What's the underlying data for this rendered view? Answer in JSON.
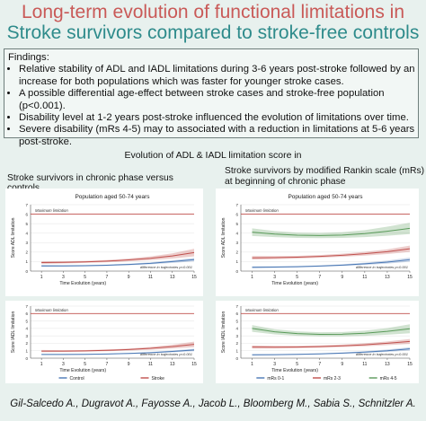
{
  "title": {
    "line1": "Long-term evolution of functional limitations in",
    "line2": "Stroke survivors compared to stroke-free controls"
  },
  "findings": {
    "heading": "Findings:",
    "items": [
      "Relative stability of ADL and IADL limitations during 3-6 years post-stroke followed by an increase for both populations which was faster for younger stroke cases.",
      "A possible differential age-effect between stroke cases and stroke-free population (p<0.001).",
      "Disability level at 1-2 years post-stroke influenced the evolution of limitations over time.",
      "Severe disability (mRs 4-5) may to associated with a reduction in limitations at 5-6 years post-stroke."
    ]
  },
  "section_title": "Evolution of ADL & IADL limitation score in",
  "left_heading": "Stroke survivors in chronic phase versus controls.",
  "right_heading": "Stroke survivors by modified Rankin scale (mRs) at beginning of chronic phase",
  "authors": "Gil-Salcedo A., Dugravot A., Fayosse A., Jacob L., Bloomberg M., Sabia S., Schnitzler A.",
  "colors": {
    "control": "#4a78b5",
    "stroke": "#c0504d",
    "mrs01": "#4a78b5",
    "mrs23": "#c0504d",
    "mrs45": "#5a9a5a",
    "maxline": "#c0504d"
  },
  "chart_data": [
    {
      "type": "line",
      "panel": "controls-ADL",
      "title": "Population aged 50-74 years",
      "xlabel": "Time Evolution (years)",
      "ylabel": "Score ADL limitation",
      "xlim": [
        0,
        15
      ],
      "ylim": [
        0,
        7
      ],
      "xticks": [
        1,
        3,
        5,
        7,
        9,
        11,
        13,
        15
      ],
      "yticks": [
        0,
        1,
        2,
        3,
        4,
        5,
        6,
        7
      ],
      "reference_line": {
        "label": "Maximum limitation",
        "y": 6
      },
      "annotation": "difference in trajectories p<0.001",
      "x": [
        1,
        3,
        5,
        7,
        9,
        11,
        13,
        15
      ],
      "series": [
        {
          "name": "Control",
          "color_key": "control",
          "values": [
            0.55,
            0.55,
            0.57,
            0.62,
            0.7,
            0.82,
            1.0,
            1.2
          ],
          "lower": [
            0.45,
            0.47,
            0.5,
            0.55,
            0.62,
            0.72,
            0.86,
            1.02
          ],
          "upper": [
            0.65,
            0.63,
            0.64,
            0.69,
            0.78,
            0.92,
            1.14,
            1.38
          ]
        },
        {
          "name": "Stroke",
          "color_key": "stroke",
          "values": [
            0.9,
            0.92,
            0.97,
            1.05,
            1.18,
            1.35,
            1.6,
            1.95
          ],
          "lower": [
            0.75,
            0.8,
            0.86,
            0.93,
            1.03,
            1.15,
            1.33,
            1.55
          ],
          "upper": [
            1.05,
            1.04,
            1.08,
            1.17,
            1.33,
            1.55,
            1.87,
            2.35
          ]
        }
      ]
    },
    {
      "type": "line",
      "panel": "mrs-ADL",
      "title": "Population aged 50-74 years",
      "xlabel": "Time Evolution (years)",
      "ylabel": "Score ADL limitation",
      "xlim": [
        0,
        15
      ],
      "ylim": [
        0,
        7
      ],
      "xticks": [
        1,
        3,
        5,
        7,
        9,
        11,
        13,
        15
      ],
      "yticks": [
        0,
        1,
        2,
        3,
        4,
        5,
        6,
        7
      ],
      "reference_line": {
        "label": "Maximum limitation",
        "y": 6
      },
      "annotation": "difference in trajectories p<0.001",
      "x": [
        1,
        3,
        5,
        7,
        9,
        11,
        13,
        15
      ],
      "series": [
        {
          "name": "mRs 0-1",
          "color_key": "mrs01",
          "values": [
            0.4,
            0.42,
            0.46,
            0.53,
            0.63,
            0.77,
            0.95,
            1.2
          ],
          "lower": [
            0.3,
            0.34,
            0.39,
            0.46,
            0.54,
            0.65,
            0.79,
            0.98
          ],
          "upper": [
            0.5,
            0.5,
            0.53,
            0.6,
            0.72,
            0.89,
            1.11,
            1.42
          ]
        },
        {
          "name": "mRs 2-3",
          "color_key": "mrs23",
          "values": [
            1.4,
            1.42,
            1.47,
            1.55,
            1.67,
            1.83,
            2.05,
            2.35
          ],
          "lower": [
            1.2,
            1.26,
            1.33,
            1.41,
            1.51,
            1.63,
            1.8,
            2.02
          ],
          "upper": [
            1.6,
            1.58,
            1.61,
            1.69,
            1.83,
            2.03,
            2.3,
            2.68
          ]
        },
        {
          "name": "mRs 4-5",
          "color_key": "mrs45",
          "values": [
            4.1,
            3.9,
            3.78,
            3.75,
            3.8,
            3.95,
            4.2,
            4.5
          ],
          "lower": [
            3.7,
            3.58,
            3.5,
            3.48,
            3.5,
            3.58,
            3.72,
            3.9
          ],
          "upper": [
            4.5,
            4.22,
            4.06,
            4.02,
            4.1,
            4.32,
            4.68,
            5.1
          ]
        }
      ]
    },
    {
      "type": "line",
      "panel": "controls-IADL",
      "title": "",
      "xlabel": "Time Evolution (years)",
      "ylabel": "Score IADL limitation",
      "xlim": [
        0,
        15
      ],
      "ylim": [
        0,
        7
      ],
      "xticks": [
        1,
        3,
        5,
        7,
        9,
        11,
        13,
        15
      ],
      "yticks": [
        0,
        1,
        2,
        3,
        4,
        5,
        6,
        7
      ],
      "reference_line": {
        "label": "Maximum limitation",
        "y": 6
      },
      "annotation": "difference in trajectories p<0.001",
      "x": [
        1,
        3,
        5,
        7,
        9,
        11,
        13,
        15
      ],
      "series": [
        {
          "name": "Control",
          "color_key": "control",
          "values": [
            0.5,
            0.5,
            0.52,
            0.56,
            0.63,
            0.74,
            0.9,
            1.1
          ],
          "lower": [
            0.42,
            0.43,
            0.46,
            0.5,
            0.56,
            0.65,
            0.78,
            0.94
          ],
          "upper": [
            0.58,
            0.57,
            0.58,
            0.62,
            0.7,
            0.83,
            1.02,
            1.26
          ]
        },
        {
          "name": "Stroke",
          "color_key": "stroke",
          "values": [
            0.95,
            0.95,
            0.98,
            1.05,
            1.16,
            1.32,
            1.55,
            1.85
          ],
          "lower": [
            0.8,
            0.83,
            0.87,
            0.93,
            1.02,
            1.13,
            1.29,
            1.48
          ],
          "upper": [
            1.1,
            1.07,
            1.09,
            1.17,
            1.3,
            1.51,
            1.81,
            2.22
          ]
        }
      ]
    },
    {
      "type": "line",
      "panel": "mrs-IADL",
      "title": "",
      "xlabel": "Time Evolution (years)",
      "ylabel": "Score IADL limitation",
      "xlim": [
        0,
        15
      ],
      "ylim": [
        0,
        7
      ],
      "xticks": [
        1,
        3,
        5,
        7,
        9,
        11,
        13,
        15
      ],
      "yticks": [
        0,
        1,
        2,
        3,
        4,
        5,
        6,
        7
      ],
      "reference_line": {
        "label": "Maximum limitation",
        "y": 6
      },
      "annotation": "difference in trajectories p<0.001",
      "x": [
        1,
        3,
        5,
        7,
        9,
        11,
        13,
        15
      ],
      "series": [
        {
          "name": "mRs 0-1",
          "color_key": "mrs01",
          "values": [
            0.45,
            0.47,
            0.51,
            0.58,
            0.68,
            0.82,
            1.0,
            1.25
          ],
          "lower": [
            0.35,
            0.39,
            0.44,
            0.51,
            0.59,
            0.7,
            0.84,
            1.03
          ],
          "upper": [
            0.55,
            0.55,
            0.58,
            0.65,
            0.77,
            0.94,
            1.16,
            1.47
          ]
        },
        {
          "name": "mRs 2-3",
          "color_key": "mrs23",
          "values": [
            1.5,
            1.48,
            1.5,
            1.56,
            1.66,
            1.8,
            2.0,
            2.25
          ],
          "lower": [
            1.28,
            1.3,
            1.34,
            1.4,
            1.49,
            1.6,
            1.75,
            1.92
          ],
          "upper": [
            1.72,
            1.66,
            1.66,
            1.72,
            1.83,
            2.0,
            2.25,
            2.58
          ]
        },
        {
          "name": "mRs 4-5",
          "color_key": "mrs45",
          "values": [
            4.0,
            3.55,
            3.3,
            3.2,
            3.22,
            3.35,
            3.6,
            3.95
          ],
          "lower": [
            3.55,
            3.2,
            3.0,
            2.92,
            2.93,
            3.0,
            3.15,
            3.35
          ],
          "upper": [
            4.45,
            3.9,
            3.6,
            3.48,
            3.51,
            3.7,
            4.05,
            4.55
          ]
        }
      ]
    }
  ]
}
